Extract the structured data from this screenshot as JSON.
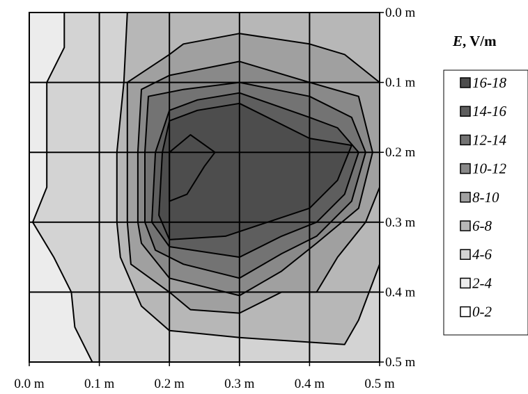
{
  "chart_data": {
    "type": "contour",
    "title_var": "E",
    "title_unit": ", V/m",
    "x_ticks": [
      "0.0 m",
      "0.1 m",
      "0.2 m",
      "0.3 m",
      "0.4 m",
      "0.5 m"
    ],
    "y_ticks": [
      "0.0 m",
      "0.1 m",
      "0.2 m",
      "0.3 m",
      "0.4 m",
      "0.5 m"
    ],
    "xlim": [
      0,
      0.5
    ],
    "ylim": [
      0,
      0.5
    ],
    "y_axis_side": "right",
    "y_inverted": true,
    "grid": true,
    "legend_position": "right",
    "levels": [
      {
        "label": "16-18",
        "color": "#4d4d4d"
      },
      {
        "label": "14-16",
        "color": "#5e5e5e"
      },
      {
        "label": "12-14",
        "color": "#737373"
      },
      {
        "label": "10-12",
        "color": "#898989"
      },
      {
        "label": "8-10",
        "color": "#a0a0a0"
      },
      {
        "label": "6-8",
        "color": "#b7b7b7"
      },
      {
        "label": "4-6",
        "color": "#d3d3d3"
      },
      {
        "label": "2-4",
        "color": "#ececec"
      },
      {
        "label": "0-2",
        "color": "#ffffff"
      }
    ],
    "contours": [
      {
        "level": "4-6",
        "points": [
          [
            0.05,
            0
          ],
          [
            0.05,
            0.05
          ],
          [
            0.025,
            0.1
          ],
          [
            0.025,
            0.15
          ],
          [
            0.025,
            0.2
          ],
          [
            0.025,
            0.25
          ],
          [
            0.005,
            0.3
          ],
          [
            0.035,
            0.35
          ],
          [
            0.06,
            0.4
          ],
          [
            0.065,
            0.45
          ],
          [
            0.09,
            0.5
          ],
          [
            0.5,
            0.5
          ],
          [
            0.5,
            0
          ]
        ]
      },
      {
        "level": "6-8",
        "points": [
          [
            0.14,
            0
          ],
          [
            0.135,
            0.1
          ],
          [
            0.125,
            0.2
          ],
          [
            0.125,
            0.3
          ],
          [
            0.13,
            0.35
          ],
          [
            0.16,
            0.42
          ],
          [
            0.2,
            0.455
          ],
          [
            0.3,
            0.465
          ],
          [
            0.45,
            0.475
          ],
          [
            0.47,
            0.44
          ],
          [
            0.5,
            0.36
          ],
          [
            0.5,
            0.0
          ],
          [
            0.3,
            0.0
          ]
        ]
      },
      {
        "level": "8-10",
        "points": [
          [
            0.3,
            0.03
          ],
          [
            0.22,
            0.045
          ],
          [
            0.2,
            0.06
          ],
          [
            0.14,
            0.1
          ],
          [
            0.14,
            0.2
          ],
          [
            0.14,
            0.3
          ],
          [
            0.145,
            0.36
          ],
          [
            0.2,
            0.4
          ],
          [
            0.23,
            0.425
          ],
          [
            0.3,
            0.43
          ],
          [
            0.36,
            0.4
          ],
          [
            0.41,
            0.4
          ],
          [
            0.44,
            0.35
          ],
          [
            0.48,
            0.3
          ],
          [
            0.5,
            0.25
          ],
          [
            0.5,
            0.1
          ],
          [
            0.45,
            0.06
          ],
          [
            0.4,
            0.045
          ]
        ]
      },
      {
        "level": "10-12",
        "points": [
          [
            0.3,
            0.07
          ],
          [
            0.2,
            0.09
          ],
          [
            0.16,
            0.11
          ],
          [
            0.155,
            0.2
          ],
          [
            0.155,
            0.3
          ],
          [
            0.16,
            0.33
          ],
          [
            0.2,
            0.38
          ],
          [
            0.3,
            0.405
          ],
          [
            0.36,
            0.37
          ],
          [
            0.41,
            0.33
          ],
          [
            0.47,
            0.28
          ],
          [
            0.49,
            0.2
          ],
          [
            0.47,
            0.12
          ],
          [
            0.4,
            0.1
          ]
        ]
      },
      {
        "level": "12-14",
        "points": [
          [
            0.3,
            0.1
          ],
          [
            0.22,
            0.11
          ],
          [
            0.17,
            0.12
          ],
          [
            0.165,
            0.2
          ],
          [
            0.165,
            0.3
          ],
          [
            0.18,
            0.34
          ],
          [
            0.22,
            0.36
          ],
          [
            0.3,
            0.38
          ],
          [
            0.36,
            0.345
          ],
          [
            0.41,
            0.32
          ],
          [
            0.46,
            0.27
          ],
          [
            0.48,
            0.2
          ],
          [
            0.46,
            0.15
          ],
          [
            0.4,
            0.12
          ]
        ]
      },
      {
        "level": "14-16",
        "points": [
          [
            0.3,
            0.115
          ],
          [
            0.24,
            0.125
          ],
          [
            0.2,
            0.14
          ],
          [
            0.18,
            0.2
          ],
          [
            0.175,
            0.3
          ],
          [
            0.2,
            0.335
          ],
          [
            0.3,
            0.35
          ],
          [
            0.36,
            0.32
          ],
          [
            0.41,
            0.3
          ],
          [
            0.45,
            0.26
          ],
          [
            0.47,
            0.2
          ],
          [
            0.44,
            0.165
          ],
          [
            0.4,
            0.15
          ]
        ]
      },
      {
        "level": "16-18 a",
        "points": [
          [
            0.3,
            0.13
          ],
          [
            0.24,
            0.14
          ],
          [
            0.2,
            0.155
          ],
          [
            0.19,
            0.2
          ],
          [
            0.185,
            0.29
          ],
          [
            0.2,
            0.325
          ],
          [
            0.28,
            0.32
          ],
          [
            0.34,
            0.3
          ],
          [
            0.4,
            0.28
          ],
          [
            0.44,
            0.24
          ],
          [
            0.46,
            0.19
          ],
          [
            0.4,
            0.18
          ]
        ]
      },
      {
        "level": "16-18 b",
        "points": [
          [
            0.2,
            0.2
          ],
          [
            0.23,
            0.175
          ],
          [
            0.265,
            0.2
          ],
          [
            0.25,
            0.22
          ],
          [
            0.225,
            0.26
          ],
          [
            0.2,
            0.27
          ]
        ]
      }
    ]
  }
}
